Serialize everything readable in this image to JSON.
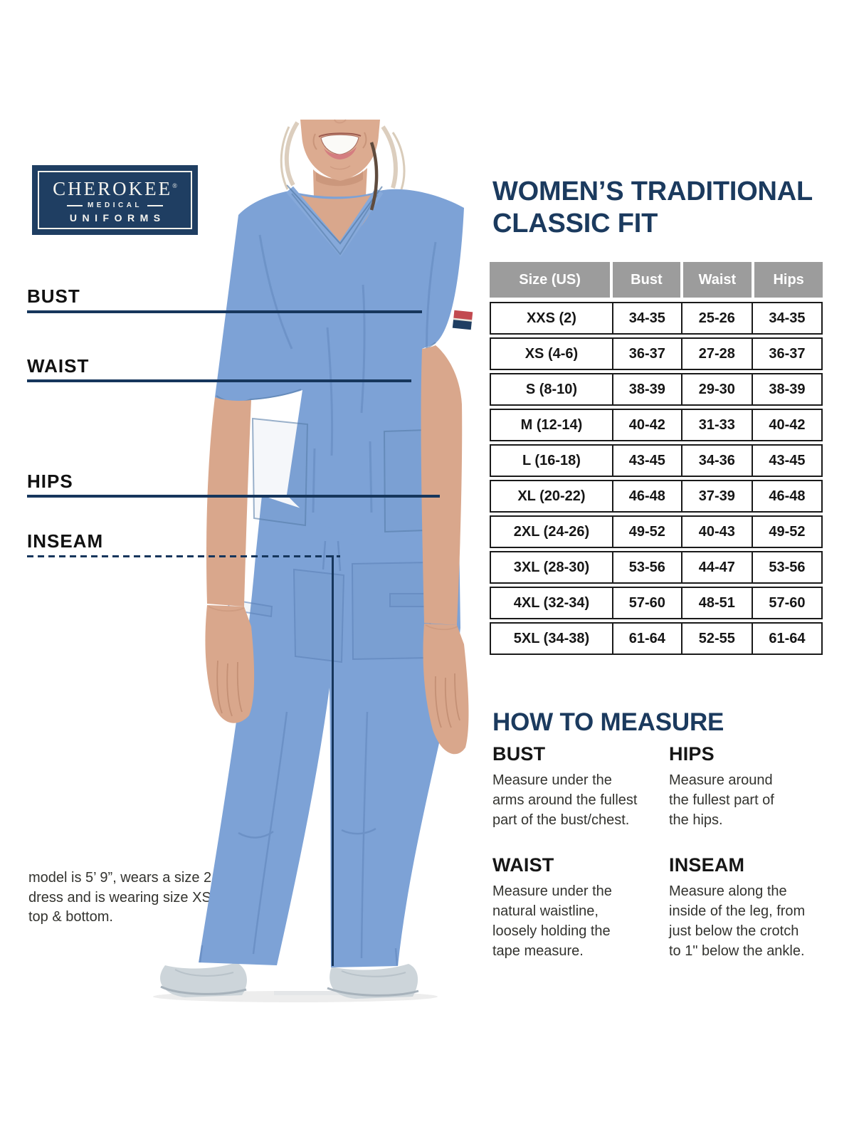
{
  "logo": {
    "brand": "CHEROKEE",
    "registered": "®",
    "medical": "MEDICAL",
    "uniforms": "UNIFORMS"
  },
  "guides": [
    {
      "label": "BUST",
      "line_style": "solid"
    },
    {
      "label": "WAIST",
      "line_style": "solid"
    },
    {
      "label": "HIPS",
      "line_style": "solid"
    },
    {
      "label": "INSEAM",
      "line_style": "dashed"
    }
  ],
  "title": {
    "line1": "WOMEN’S TRADITIONAL",
    "line2": "CLASSIC FIT"
  },
  "size_table": {
    "headers": [
      "Size (US)",
      "Bust",
      "Waist",
      "Hips"
    ],
    "rows": [
      [
        "XXS (2)",
        "34-35",
        "25-26",
        "34-35"
      ],
      [
        "XS (4-6)",
        "36-37",
        "27-28",
        "36-37"
      ],
      [
        "S (8-10)",
        "38-39",
        "29-30",
        "38-39"
      ],
      [
        "M (12-14)",
        "40-42",
        "31-33",
        "40-42"
      ],
      [
        "L (16-18)",
        "43-45",
        "34-36",
        "43-45"
      ],
      [
        "XL (20-22)",
        "46-48",
        "37-39",
        "46-48"
      ],
      [
        "2XL (24-26)",
        "49-52",
        "40-43",
        "49-52"
      ],
      [
        "3XL (28-30)",
        "53-56",
        "44-47",
        "53-56"
      ],
      [
        "4XL (32-34)",
        "57-60",
        "48-51",
        "57-60"
      ],
      [
        "5XL (34-38)",
        "61-64",
        "52-55",
        "61-64"
      ]
    ]
  },
  "how_to_measure": {
    "heading": "HOW TO MEASURE",
    "items": [
      {
        "label": "BUST",
        "lines": [
          "Measure under the",
          "arms around the fullest",
          "part of the bust/chest."
        ]
      },
      {
        "label": "HIPS",
        "lines": [
          "Measure around",
          "the fullest part of",
          "the hips."
        ]
      },
      {
        "label": "WAIST",
        "lines": [
          "Measure under the",
          "natural waistline,",
          "loosely holding the",
          "tape measure."
        ]
      },
      {
        "label": "INSEAM",
        "lines": [
          "Measure along the",
          "inside of the leg, from",
          "just below the crotch",
          "to 1\" below the ankle."
        ]
      }
    ]
  },
  "model_note": {
    "lines": [
      "model is 5’ 9”, wears a size 2",
      "dress and is wearing size XS",
      "top & bottom."
    ]
  },
  "colors": {
    "navy": "#1b3a5e",
    "line_navy": "#16365c",
    "logo_navy": "#1f3e62",
    "table_header_gray": "#9c9c9c",
    "scrub_blue": "#7da2d6",
    "scrub_shadow": "#567ca8",
    "text_black": "#161616"
  }
}
